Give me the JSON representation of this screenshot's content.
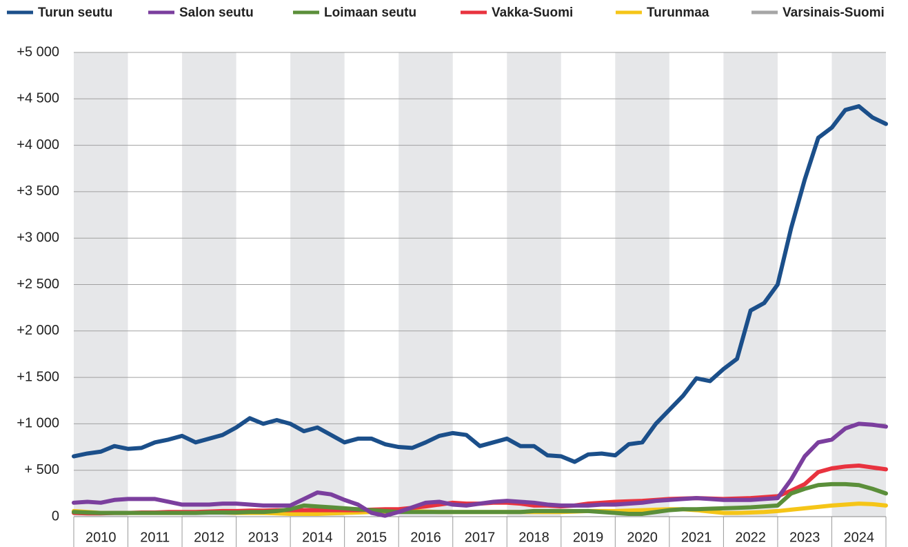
{
  "chart_data": {
    "type": "line",
    "x": [
      2010,
      2010.25,
      2010.5,
      2010.75,
      2011,
      2011.25,
      2011.5,
      2011.75,
      2012,
      2012.25,
      2012.5,
      2012.75,
      2013,
      2013.25,
      2013.5,
      2013.75,
      2014,
      2014.25,
      2014.5,
      2014.75,
      2015,
      2015.25,
      2015.5,
      2015.75,
      2016,
      2016.25,
      2016.5,
      2016.75,
      2017,
      2017.25,
      2017.5,
      2017.75,
      2018,
      2018.25,
      2018.5,
      2018.75,
      2019,
      2019.25,
      2019.5,
      2019.75,
      2020,
      2020.25,
      2020.5,
      2020.75,
      2021,
      2021.25,
      2021.5,
      2021.75,
      2022,
      2022.25,
      2022.5,
      2022.75,
      2023,
      2023.25,
      2023.5,
      2023.75,
      2024,
      2024.25,
      2024.5,
      2024.75,
      2025
    ],
    "series": [
      {
        "name": "Turun seutu",
        "color": "#1b4f8a",
        "values": [
          650,
          680,
          700,
          760,
          730,
          740,
          800,
          830,
          870,
          800,
          840,
          880,
          960,
          1060,
          1000,
          1040,
          1000,
          920,
          960,
          880,
          800,
          840,
          840,
          780,
          750,
          740,
          800,
          870,
          900,
          880,
          760,
          800,
          840,
          760,
          760,
          660,
          650,
          590,
          670,
          680,
          660,
          780,
          800,
          1000,
          1150,
          1300,
          1490,
          1460,
          1590,
          1700,
          2220,
          2300,
          2500,
          3110,
          3630,
          4080,
          4190,
          4380,
          4420,
          4300,
          4230
        ]
      },
      {
        "name": "Salon seutu",
        "color": "#7b3f9e",
        "values": [
          150,
          160,
          150,
          180,
          190,
          190,
          190,
          160,
          130,
          130,
          130,
          140,
          140,
          130,
          120,
          120,
          120,
          190,
          260,
          240,
          180,
          130,
          40,
          10,
          50,
          100,
          150,
          160,
          130,
          120,
          140,
          160,
          170,
          160,
          150,
          130,
          120,
          120,
          120,
          130,
          130,
          140,
          150,
          170,
          180,
          190,
          200,
          190,
          180,
          180,
          180,
          190,
          200,
          400,
          650,
          800,
          830,
          950,
          1000,
          990,
          970
        ]
      },
      {
        "name": "Loimaan seutu",
        "color": "#5b8f3a",
        "values": [
          50,
          45,
          40,
          40,
          40,
          40,
          40,
          40,
          40,
          40,
          45,
          45,
          45,
          50,
          50,
          60,
          80,
          120,
          110,
          100,
          90,
          80,
          70,
          60,
          50,
          50,
          50,
          50,
          50,
          50,
          50,
          50,
          50,
          50,
          60,
          60,
          60,
          60,
          60,
          50,
          40,
          30,
          30,
          50,
          70,
          80,
          80,
          85,
          90,
          95,
          100,
          110,
          120,
          250,
          300,
          340,
          350,
          350,
          340,
          300,
          250
        ]
      },
      {
        "name": "Vakka-Suomi",
        "color": "#e8333f",
        "values": [
          40,
          35,
          35,
          40,
          40,
          45,
          45,
          50,
          50,
          50,
          55,
          60,
          60,
          65,
          65,
          70,
          70,
          70,
          70,
          70,
          70,
          70,
          75,
          80,
          80,
          95,
          110,
          130,
          150,
          140,
          140,
          150,
          150,
          140,
          120,
          120,
          110,
          120,
          140,
          150,
          160,
          165,
          170,
          180,
          190,
          195,
          200,
          195,
          190,
          195,
          200,
          210,
          220,
          280,
          350,
          480,
          520,
          540,
          550,
          530,
          510
        ]
      },
      {
        "name": "Turunmaa",
        "color": "#f5c518",
        "values": [
          60,
          50,
          40,
          40,
          40,
          40,
          40,
          40,
          40,
          45,
          45,
          45,
          40,
          40,
          40,
          35,
          30,
          30,
          30,
          35,
          40,
          45,
          50,
          55,
          60,
          60,
          55,
          50,
          50,
          50,
          50,
          50,
          50,
          50,
          50,
          50,
          50,
          55,
          60,
          60,
          60,
          65,
          70,
          75,
          80,
          80,
          70,
          55,
          40,
          40,
          45,
          50,
          60,
          75,
          90,
          105,
          120,
          130,
          140,
          135,
          120
        ]
      },
      {
        "name": "Varsinais-Suomi",
        "color": "#a6a6a6",
        "values": [
          null,
          null,
          null,
          null,
          null,
          null,
          null,
          null,
          null,
          null,
          null,
          null,
          null,
          null,
          null,
          null,
          null,
          null,
          null,
          null,
          null,
          null,
          null,
          null,
          null,
          null,
          null,
          null,
          null,
          null,
          null,
          null,
          null,
          null,
          null,
          null,
          null,
          null,
          null,
          null,
          null,
          null,
          null,
          null,
          null,
          null,
          null,
          null,
          null,
          null,
          null,
          null,
          null,
          null,
          null,
          null,
          null,
          null,
          null,
          null,
          null
        ]
      }
    ],
    "xlim": [
      2010,
      2025
    ],
    "xticks": [
      2010,
      2011,
      2012,
      2013,
      2014,
      2015,
      2016,
      2017,
      2018,
      2019,
      2020,
      2021,
      2022,
      2023,
      2024
    ],
    "ylim": [
      0,
      5000
    ],
    "yticks": [
      {
        "value": 0,
        "label": "0"
      },
      {
        "value": 500,
        "label": "+ 500"
      },
      {
        "value": 1000,
        "label": "+1 000"
      },
      {
        "value": 1500,
        "label": "+1 500"
      },
      {
        "value": 2000,
        "label": "+2 000"
      },
      {
        "value": 2500,
        "label": "+2 500"
      },
      {
        "value": 3000,
        "label": "+3 000"
      },
      {
        "value": 3500,
        "label": "+3 500"
      },
      {
        "value": 4000,
        "label": "+4 000"
      },
      {
        "value": 4500,
        "label": "+4 500"
      },
      {
        "value": 5000,
        "label": "+5 000"
      }
    ],
    "grid": true,
    "legend": "top"
  }
}
